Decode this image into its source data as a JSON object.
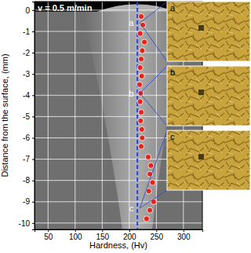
{
  "chart_data": {
    "type": "scatter",
    "title": "v = 0.5 m/min",
    "x_label": "Hardness, (Hv)",
    "y_label": "Distance from the surface, (mm)",
    "x": [
      222,
      225,
      220,
      228,
      224,
      222,
      220,
      223,
      219,
      221,
      220,
      222,
      221,
      223,
      224,
      222,
      235,
      240,
      238,
      243,
      236,
      245,
      238,
      232
    ],
    "y": [
      -0.3,
      -0.7,
      -1.1,
      -1.5,
      -1.9,
      -2.3,
      -2.7,
      -3.1,
      -3.5,
      -3.9,
      -4.3,
      -4.8,
      -5.2,
      -5.6,
      -6.0,
      -6.4,
      -6.9,
      -7.3,
      -7.7,
      -8.1,
      -8.5,
      -9.0,
      -9.4,
      -9.8
    ],
    "color": "#e8221c",
    "marker": "circle",
    "xlim": [
      25,
      335
    ],
    "ylim": [
      -10.3,
      0.4
    ],
    "xticks": [
      50,
      100,
      150,
      200,
      250,
      300
    ],
    "yticks": [
      0,
      -1,
      -2,
      -3,
      -4,
      -5,
      -6,
      -7,
      -8,
      -9,
      -10
    ],
    "grid": true,
    "reference_line": {
      "x": 215,
      "color": "#2a44d0",
      "line_style": "dashed"
    },
    "annotations": [
      {
        "text": "a",
        "x": 208,
        "y": -0.6
      },
      {
        "text": "b",
        "x": 208,
        "y": -3.9
      },
      {
        "text": "c",
        "x": 208,
        "y": -9.3
      }
    ],
    "panels": [
      "a",
      "b",
      "c"
    ]
  }
}
